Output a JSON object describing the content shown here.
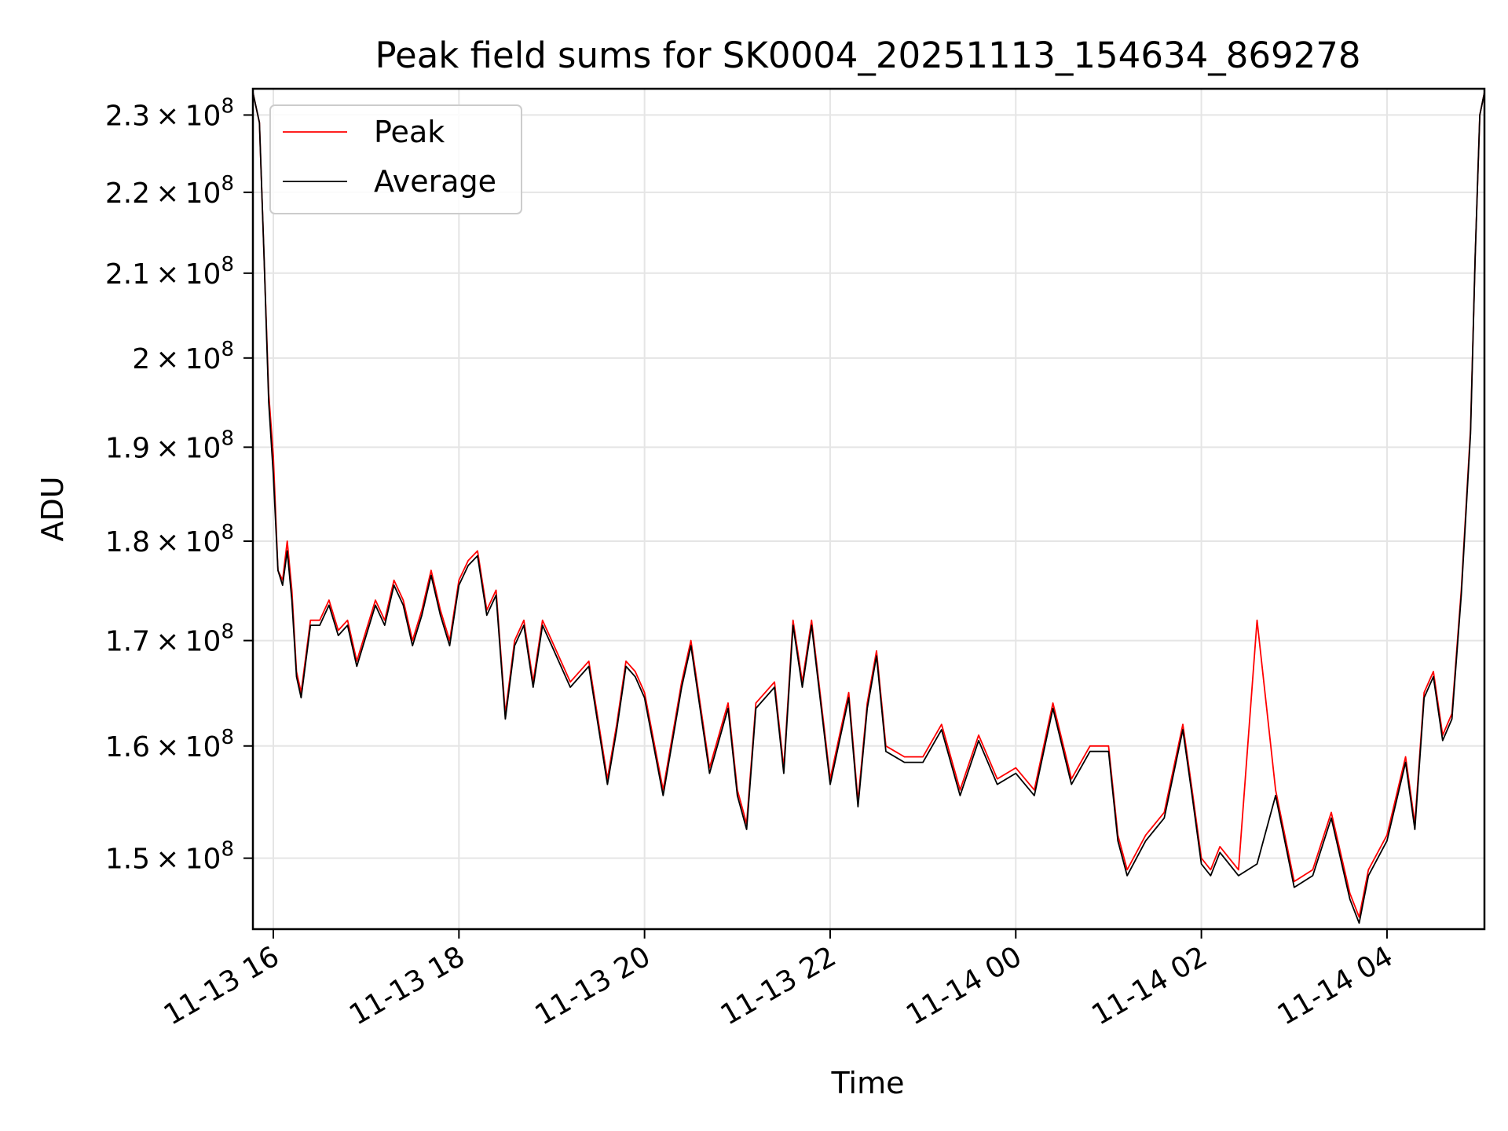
{
  "chart_data": {
    "type": "line",
    "title": "Peak field sums for SK0004_20251113_154634_869278",
    "xlabel": "Time",
    "ylabel": "ADU",
    "yscale": "log",
    "ylim": [
      144000000.0,
      233500000.0
    ],
    "xlim_hours": [
      15.78,
      29.05
    ],
    "grid": true,
    "legend": {
      "location": "upper-left"
    },
    "x_ticks": [
      {
        "hour": 16,
        "label": "11-13 16"
      },
      {
        "hour": 18,
        "label": "11-13 18"
      },
      {
        "hour": 20,
        "label": "11-13 20"
      },
      {
        "hour": 22,
        "label": "11-13 22"
      },
      {
        "hour": 24,
        "label": "11-14 00"
      },
      {
        "hour": 26,
        "label": "11-14 02"
      },
      {
        "hour": 28,
        "label": "11-14 04"
      }
    ],
    "y_ticks": [
      {
        "value": 150000000.0,
        "mantissa": "1.5"
      },
      {
        "value": 160000000.0,
        "mantissa": "1.6"
      },
      {
        "value": 170000000.0,
        "mantissa": "1.7"
      },
      {
        "value": 180000000.0,
        "mantissa": "1.8"
      },
      {
        "value": 190000000.0,
        "mantissa": "1.9"
      },
      {
        "value": 200000000.0,
        "mantissa": "2"
      },
      {
        "value": 210000000.0,
        "mantissa": "2.1"
      },
      {
        "value": 220000000.0,
        "mantissa": "2.2"
      },
      {
        "value": 230000000.0,
        "mantissa": "2.3"
      }
    ],
    "y_tick_times": "×",
    "y_tick_base": "10",
    "y_tick_exponent": "8",
    "x_hours": [
      15.78,
      15.85,
      15.9,
      15.95,
      16.0,
      16.05,
      16.1,
      16.15,
      16.2,
      16.25,
      16.3,
      16.4,
      16.5,
      16.6,
      16.7,
      16.8,
      16.9,
      17.0,
      17.1,
      17.2,
      17.3,
      17.4,
      17.5,
      17.6,
      17.7,
      17.8,
      17.9,
      18.0,
      18.1,
      18.2,
      18.3,
      18.4,
      18.5,
      18.6,
      18.7,
      18.8,
      18.9,
      19.0,
      19.2,
      19.4,
      19.6,
      19.7,
      19.8,
      19.9,
      20.0,
      20.2,
      20.4,
      20.5,
      20.7,
      20.9,
      21.0,
      21.1,
      21.2,
      21.4,
      21.5,
      21.6,
      21.7,
      21.8,
      22.0,
      22.2,
      22.3,
      22.4,
      22.5,
      22.6,
      22.8,
      23.0,
      23.2,
      23.4,
      23.6,
      23.8,
      24.0,
      24.2,
      24.4,
      24.6,
      24.8,
      25.0,
      25.1,
      25.2,
      25.4,
      25.6,
      25.8,
      25.9,
      26.0,
      26.1,
      26.2,
      26.4,
      26.6,
      26.8,
      27.0,
      27.2,
      27.4,
      27.6,
      27.7,
      27.8,
      28.0,
      28.2,
      28.3,
      28.4,
      28.5,
      28.6,
      28.7,
      28.8,
      28.9,
      28.95,
      29.0,
      29.05
    ],
    "series": [
      {
        "name": "Peak",
        "color": "#ff0000",
        "values": [
          233000000.0,
          229000000.0,
          212000000.0,
          196000000.0,
          189000000.0,
          177000000.0,
          176000000.0,
          180000000.0,
          175000000.0,
          167000000.0,
          165000000.0,
          172000000.0,
          172000000.0,
          174000000.0,
          171000000.0,
          172000000.0,
          168000000.0,
          171000000.0,
          174000000.0,
          172000000.0,
          176000000.0,
          174000000.0,
          170000000.0,
          173000000.0,
          177000000.0,
          173000000.0,
          170000000.0,
          176000000.0,
          178000000.0,
          179000000.0,
          173000000.0,
          175000000.0,
          163000000.0,
          170000000.0,
          172000000.0,
          166000000.0,
          172000000.0,
          170000000.0,
          166000000.0,
          168000000.0,
          157000000.0,
          162000000.0,
          168000000.0,
          167000000.0,
          165000000.0,
          156000000.0,
          166000000.0,
          170000000.0,
          158000000.0,
          164000000.0,
          156000000.0,
          153000000.0,
          164000000.0,
          166000000.0,
          158000000.0,
          172000000.0,
          166000000.0,
          172000000.0,
          157000000.0,
          165000000.0,
          155000000.0,
          164000000.0,
          169000000.0,
          160000000.0,
          159000000.0,
          159000000.0,
          162000000.0,
          156000000.0,
          161000000.0,
          157000000.0,
          158000000.0,
          156000000.0,
          164000000.0,
          157000000.0,
          160000000.0,
          160000000.0,
          152000000.0,
          149000000.0,
          152000000.0,
          154000000.0,
          162000000.0,
          156000000.0,
          150000000.0,
          149000000.0,
          151000000.0,
          149000000.0,
          172000000.0,
          156000000.0,
          148000000.0,
          149000000.0,
          154000000.0,
          147000000.0,
          145000000.0,
          149000000.0,
          152000000.0,
          159000000.0,
          153000000.0,
          165000000.0,
          167000000.0,
          161000000.0,
          163000000.0,
          175000000.0,
          192000000.0,
          212000000.0,
          230000000.0,
          233000000.0
        ]
      },
      {
        "name": "Average",
        "color": "#000000",
        "values": [
          233000000.0,
          229000000.0,
          212000000.0,
          195000000.0,
          187000000.0,
          177000000.0,
          175500000.0,
          179000000.0,
          174000000.0,
          166500000.0,
          164500000.0,
          171500000.0,
          171500000.0,
          173500000.0,
          170500000.0,
          171500000.0,
          167500000.0,
          170500000.0,
          173500000.0,
          171500000.0,
          175500000.0,
          173500000.0,
          169500000.0,
          172500000.0,
          176500000.0,
          172500000.0,
          169500000.0,
          175500000.0,
          177500000.0,
          178500000.0,
          172500000.0,
          174500000.0,
          162500000.0,
          169500000.0,
          171500000.0,
          165500000.0,
          171500000.0,
          169500000.0,
          165500000.0,
          167500000.0,
          156500000.0,
          161500000.0,
          167500000.0,
          166500000.0,
          164500000.0,
          155500000.0,
          165500000.0,
          169500000.0,
          157500000.0,
          163500000.0,
          155500000.0,
          152500000.0,
          163500000.0,
          165500000.0,
          157500000.0,
          171500000.0,
          165500000.0,
          171500000.0,
          156500000.0,
          164500000.0,
          154500000.0,
          163500000.0,
          168500000.0,
          159500000.0,
          158500000.0,
          158500000.0,
          161500000.0,
          155500000.0,
          160500000.0,
          156500000.0,
          157500000.0,
          155500000.0,
          163500000.0,
          156500000.0,
          159500000.0,
          159500000.0,
          151500000.0,
          148500000.0,
          151500000.0,
          153500000.0,
          161500000.0,
          155500000.0,
          149500000.0,
          148500000.0,
          150500000.0,
          148500000.0,
          149500000.0,
          155500000.0,
          147500000.0,
          148500000.0,
          153500000.0,
          146500000.0,
          144500000.0,
          148500000.0,
          151500000.0,
          158500000.0,
          152500000.0,
          164500000.0,
          166500000.0,
          160500000.0,
          162500000.0,
          174500000.0,
          191500000.0,
          212000000.0,
          230000000.0,
          233000000.0
        ]
      }
    ]
  }
}
